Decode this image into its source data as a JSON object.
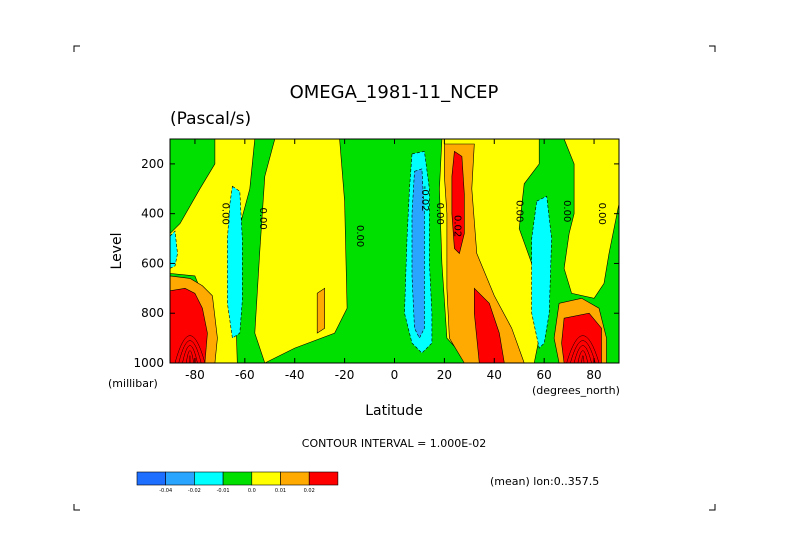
{
  "chart_data": {
    "type": "heatmap",
    "title": "OMEGA_1981-11_NCEP",
    "subtitle": "(Pascal/s)",
    "xlabel": "Latitude",
    "ylabel": "Level",
    "x_units": "(degrees_north)",
    "y_units": "(millibar)",
    "xlim": [
      -90,
      90
    ],
    "ylim": [
      1000,
      100
    ],
    "x_ticks": [
      "-80",
      "-60",
      "-40",
      "-20",
      "0",
      "20",
      "40",
      "60",
      "80"
    ],
    "x_tick_values": [
      -80,
      -60,
      -40,
      -20,
      0,
      20,
      40,
      60,
      80
    ],
    "y_ticks": [
      "200",
      "400",
      "600",
      "800",
      "1000"
    ],
    "y_tick_values": [
      200,
      400,
      600,
      800,
      1000
    ],
    "contour_interval_text": "CONTOUR INTERVAL = 1.000E-02",
    "mean_text": "(mean) lon:0..357.5",
    "contour_labels": [
      {
        "text": "0.00",
        "lat": -69,
        "lev": 400
      },
      {
        "text": "0.00",
        "lat": -54,
        "lev": 420
      },
      {
        "text": "0.00",
        "lat": -15,
        "lev": 490
      },
      {
        "text": "-0.02",
        "lat": 11,
        "lev": 340
      },
      {
        "text": "0.00",
        "lat": 17,
        "lev": 400
      },
      {
        "text": "0.02",
        "lat": 24,
        "lev": 450
      },
      {
        "text": "0.00",
        "lat": 49,
        "lev": 390
      },
      {
        "text": "0.00",
        "lat": 68,
        "lev": 390
      },
      {
        "text": "0.00",
        "lat": 82,
        "lev": 400
      }
    ],
    "colorbar": {
      "colors": [
        "#1e6eff",
        "#2aa5ff",
        "#00ffff",
        "#00e000",
        "#ffff00",
        "#ffaa00",
        "#ff0000"
      ],
      "labels": [
        "-0.04",
        "-0.02",
        "-0.01",
        "0.0",
        "0.01",
        "0.02"
      ]
    },
    "regions": [
      {
        "color": "#00e000",
        "points": [
          [
            -90,
            100
          ],
          [
            90,
            100
          ],
          [
            90,
            1000
          ],
          [
            -90,
            1000
          ]
        ]
      },
      {
        "color": "#ffff00",
        "points": [
          [
            -72,
            100
          ],
          [
            -56,
            100
          ],
          [
            -58,
            300
          ],
          [
            -62,
            450
          ],
          [
            -64,
            700
          ],
          [
            -63,
            1000
          ],
          [
            -73,
            1000
          ],
          [
            -74,
            800
          ],
          [
            -80,
            650
          ],
          [
            -90,
            640
          ],
          [
            -90,
            480
          ],
          [
            -86,
            440
          ],
          [
            -78,
            300
          ],
          [
            -72,
            200
          ]
        ]
      },
      {
        "color": "#ffff00",
        "points": [
          [
            -48,
            100
          ],
          [
            -22,
            100
          ],
          [
            -20,
            350
          ],
          [
            -19,
            780
          ],
          [
            -24,
            880
          ],
          [
            -40,
            940
          ],
          [
            -52,
            1000
          ],
          [
            -56,
            880
          ],
          [
            -54,
            550
          ],
          [
            -52,
            250
          ]
        ]
      },
      {
        "color": "#ffff00",
        "points": [
          [
            19,
            100
          ],
          [
            38,
            100
          ],
          [
            58,
            100
          ],
          [
            58,
            200
          ],
          [
            52,
            280
          ],
          [
            50,
            460
          ],
          [
            55,
            600
          ],
          [
            58,
            900
          ],
          [
            56,
            1000
          ],
          [
            30,
            1000
          ],
          [
            21,
            900
          ],
          [
            19,
            600
          ],
          [
            18,
            300
          ]
        ]
      },
      {
        "color": "#ffff00",
        "points": [
          [
            68,
            100
          ],
          [
            90,
            100
          ],
          [
            90,
            360
          ],
          [
            86,
            560
          ],
          [
            84,
            680
          ],
          [
            80,
            740
          ],
          [
            71,
            720
          ],
          [
            68,
            620
          ],
          [
            70,
            480
          ],
          [
            72,
            400
          ],
          [
            72,
            200
          ]
        ]
      },
      {
        "color": "#ffaa00",
        "points": [
          [
            20,
            120
          ],
          [
            32,
            120
          ],
          [
            31,
            300
          ],
          [
            33,
            560
          ],
          [
            40,
            730
          ],
          [
            47,
            860
          ],
          [
            52,
            1000
          ],
          [
            28,
            1000
          ],
          [
            22,
            900
          ],
          [
            21,
            700
          ],
          [
            21,
            400
          ],
          [
            20,
            250
          ]
        ]
      },
      {
        "color": "#ffaa00",
        "points": [
          [
            -90,
            650
          ],
          [
            -82,
            660
          ],
          [
            -77,
            690
          ],
          [
            -73,
            730
          ],
          [
            -71,
            900
          ],
          [
            -72,
            1000
          ],
          [
            -90,
            1000
          ]
        ]
      },
      {
        "color": "#ffaa00",
        "points": [
          [
            -31,
            720
          ],
          [
            -28,
            700
          ],
          [
            -28,
            860
          ],
          [
            -31,
            880
          ]
        ]
      },
      {
        "color": "#ffaa00",
        "points": [
          [
            66,
            760
          ],
          [
            75,
            740
          ],
          [
            82,
            780
          ],
          [
            85,
            900
          ],
          [
            85,
            1000
          ],
          [
            66,
            1000
          ],
          [
            64,
            900
          ]
        ]
      },
      {
        "color": "#ff0000",
        "points": [
          [
            24,
            150
          ],
          [
            27,
            170
          ],
          [
            28,
            320
          ],
          [
            28,
            480
          ],
          [
            26,
            560
          ],
          [
            24,
            540
          ],
          [
            23,
            400
          ],
          [
            23,
            250
          ]
        ]
      },
      {
        "color": "#ff0000",
        "points": [
          [
            32,
            700
          ],
          [
            38,
            760
          ],
          [
            42,
            880
          ],
          [
            44,
            1000
          ],
          [
            34,
            1000
          ],
          [
            33,
            900
          ],
          [
            32,
            800
          ]
        ]
      },
      {
        "color": "#ff0000",
        "points": [
          [
            -90,
            710
          ],
          [
            -84,
            700
          ],
          [
            -80,
            720
          ],
          [
            -77,
            780
          ],
          [
            -75,
            880
          ],
          [
            -76,
            1000
          ],
          [
            -90,
            1000
          ]
        ]
      },
      {
        "color": "#ff0000",
        "points": [
          [
            68,
            820
          ],
          [
            78,
            800
          ],
          [
            83,
            860
          ],
          [
            83,
            1000
          ],
          [
            68,
            1000
          ],
          [
            67,
            920
          ]
        ]
      },
      {
        "color": "#00ffff",
        "points": [
          [
            7,
            160
          ],
          [
            12,
            150
          ],
          [
            14,
            300
          ],
          [
            14,
            600
          ],
          [
            15,
            800
          ],
          [
            15,
            920
          ],
          [
            11,
            960
          ],
          [
            7,
            920
          ],
          [
            4,
            800
          ],
          [
            5,
            500
          ],
          [
            6,
            300
          ]
        ]
      },
      {
        "color": "#2aa5ff",
        "points": [
          [
            8,
            230
          ],
          [
            11,
            220
          ],
          [
            12,
            400
          ],
          [
            12,
            650
          ],
          [
            12,
            860
          ],
          [
            10,
            900
          ],
          [
            8,
            860
          ],
          [
            7,
            650
          ],
          [
            7,
            400
          ]
        ]
      },
      {
        "color": "#00ffff",
        "points": [
          [
            -65,
            290
          ],
          [
            -62,
            310
          ],
          [
            -61,
            500
          ],
          [
            -61,
            750
          ],
          [
            -62,
            880
          ],
          [
            -65,
            900
          ],
          [
            -67,
            760
          ],
          [
            -67,
            500
          ],
          [
            -66,
            360
          ]
        ]
      },
      {
        "color": "#00ffff",
        "points": [
          [
            57,
            350
          ],
          [
            61,
            330
          ],
          [
            63,
            500
          ],
          [
            62,
            800
          ],
          [
            60,
            920
          ],
          [
            58,
            940
          ],
          [
            55,
            800
          ],
          [
            55,
            500
          ]
        ]
      },
      {
        "color": "#00ffff",
        "points": [
          [
            -90,
            490
          ],
          [
            -88,
            470
          ],
          [
            -87,
            560
          ],
          [
            -88,
            610
          ],
          [
            -90,
            620
          ]
        ]
      }
    ]
  }
}
